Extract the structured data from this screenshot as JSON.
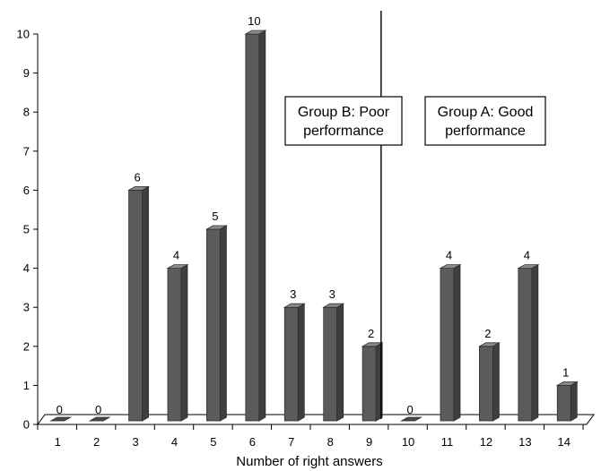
{
  "chart_data": {
    "type": "bar",
    "categories": [
      "1",
      "2",
      "3",
      "4",
      "5",
      "6",
      "7",
      "8",
      "9",
      "10",
      "11",
      "12",
      "13",
      "14"
    ],
    "values": [
      0,
      0,
      6,
      4,
      5,
      10,
      3,
      3,
      2,
      0,
      4,
      2,
      4,
      1
    ],
    "xlabel": "Number of right answers",
    "ylabel": "",
    "ylim": [
      0,
      10
    ],
    "yticks": [
      "0",
      "1",
      "2",
      "3",
      "4",
      "5",
      "6",
      "7",
      "8",
      "9",
      "10"
    ],
    "grid": false,
    "divider_after_category": "10",
    "bar_color": "#5b5b5b",
    "annotations": [
      {
        "lines": [
          "Group B: Poor",
          "performance"
        ]
      },
      {
        "lines": [
          "Group A: Good",
          "performance"
        ]
      }
    ]
  }
}
